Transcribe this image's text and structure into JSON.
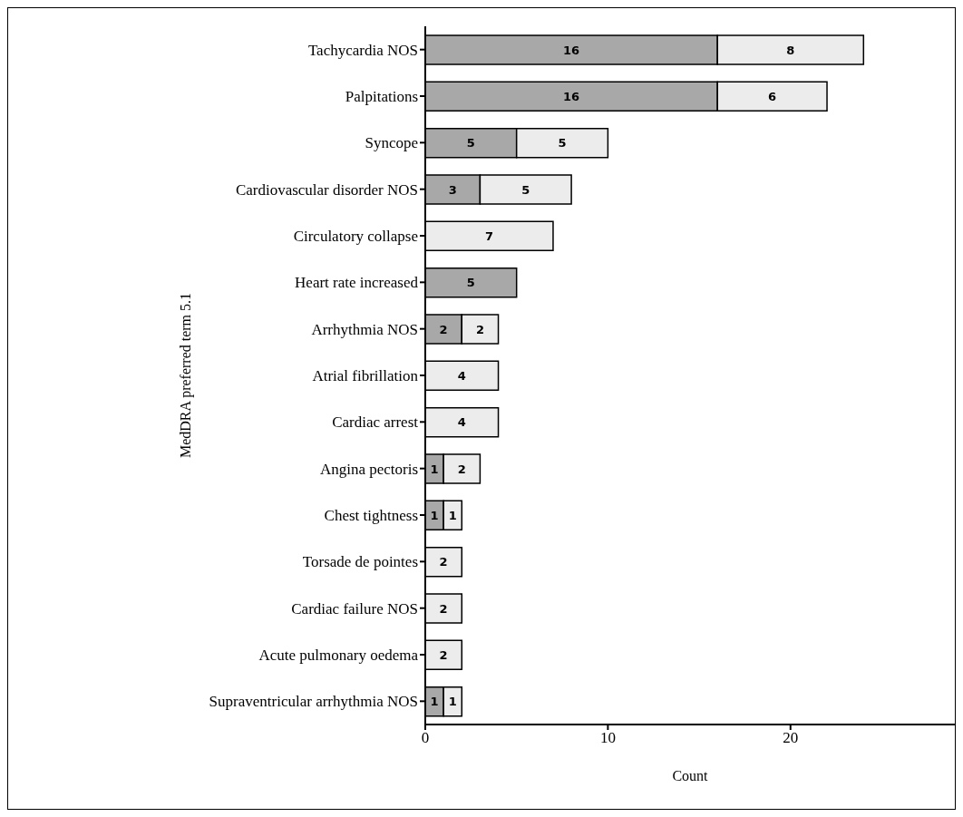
{
  "chart_data": {
    "type": "bar",
    "orientation": "horizontal",
    "stacked": true,
    "xlabel": "Count",
    "ylabel": "MedDRA preferred term 5.1",
    "categories": [
      "Tachycardia NOS",
      "Palpitations",
      "Syncope",
      "Cardiovascular disorder NOS",
      "Circulatory collapse",
      "Heart rate increased",
      "Arrhythmia NOS",
      "Atrial fibrillation",
      "Cardiac arrest",
      "Angina pectoris",
      "Chest tightness",
      "Torsade de pointes",
      "Cardiac failure NOS",
      "Acute pulmonary oedema",
      "Supraventricular arrhythmia NOS"
    ],
    "series": [
      {
        "color": "#a8a8a8",
        "values": [
          16,
          16,
          5,
          3,
          null,
          5,
          2,
          null,
          null,
          1,
          1,
          null,
          null,
          null,
          1
        ]
      },
      {
        "color": "#ececec",
        "values": [
          8,
          6,
          5,
          5,
          7,
          null,
          2,
          4,
          4,
          2,
          1,
          2,
          2,
          2,
          1
        ]
      }
    ],
    "xlim": [
      0,
      29
    ],
    "xticks": [
      0,
      10,
      20
    ],
    "data_labels": true,
    "grid": false,
    "legend": false
  }
}
